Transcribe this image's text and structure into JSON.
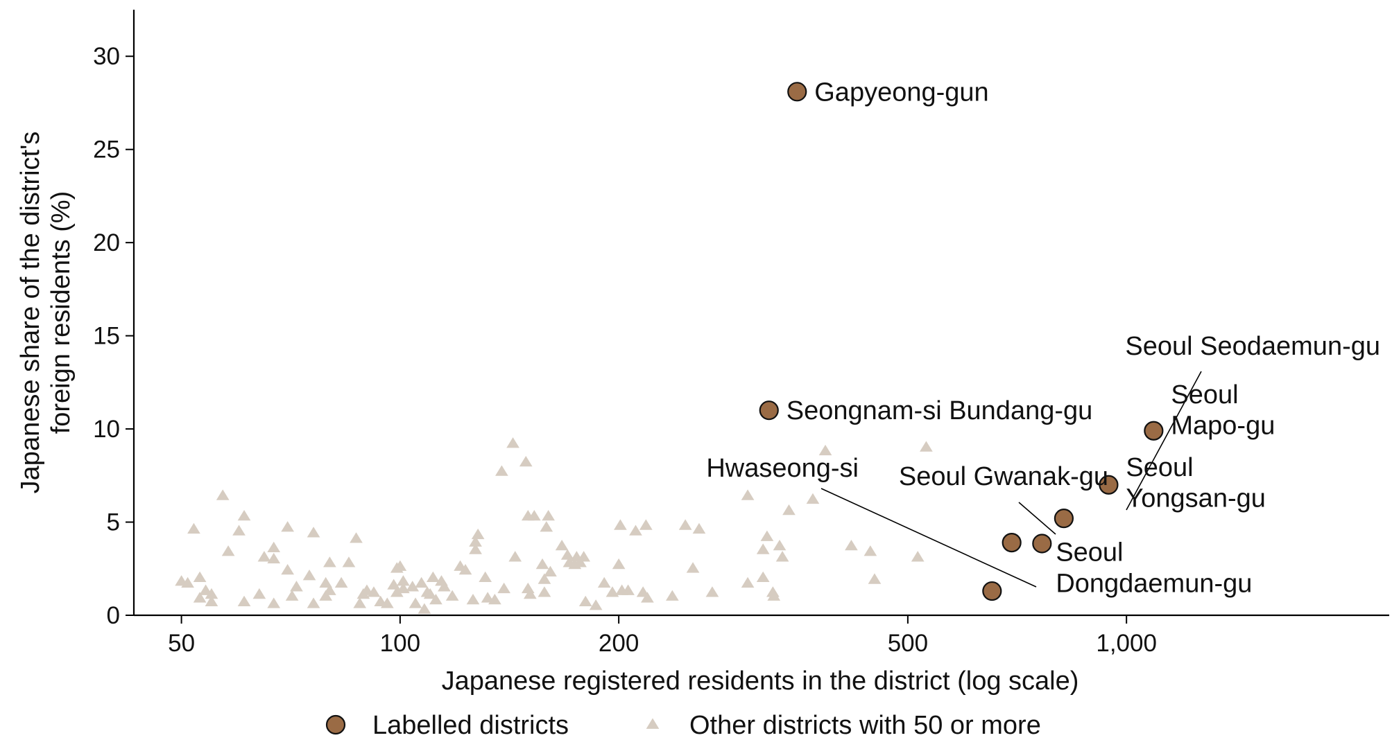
{
  "chart_data": {
    "type": "scatter",
    "xlabel": "Japanese registered residents in the district (log scale)",
    "ylabel": "Japanese share of the district's foreign residents (%)",
    "x_scale": "log",
    "xlim": [
      43,
      2300
    ],
    "ylim": [
      0,
      32.5
    ],
    "x_ticks": [
      50,
      100,
      200,
      500,
      1000
    ],
    "x_tick_labels": [
      "50",
      "100",
      "200",
      "500",
      "1,000"
    ],
    "y_ticks": [
      0,
      5,
      10,
      15,
      20,
      25,
      30
    ],
    "y_tick_labels": [
      "0",
      "5",
      "10",
      "15",
      "20",
      "25",
      "30"
    ],
    "grid": false,
    "legend_position": "bottom",
    "colors": {
      "labelled": "#9a6b45",
      "labelled_edge": "#111111",
      "other": "#d6ccc1",
      "axis": "#000000"
    },
    "series": [
      {
        "name": "Labelled districts",
        "marker": "circle",
        "points": [
          {
            "label": "Gapyeong-gun",
            "x": 352,
            "y": 28.1
          },
          {
            "label": "Seongnam-si Bundang-gu",
            "x": 322,
            "y": 11.0
          },
          {
            "label": "Seoul Mapo-gu",
            "x": 1090,
            "y": 9.9
          },
          {
            "label": "Seoul Yongsan-gu",
            "x": 945,
            "y": 7.0
          },
          {
            "label": "Seoul Seodaemun-gu",
            "x": 820,
            "y": 5.2
          },
          {
            "label": "Seoul Gwanak-gu",
            "x": 695,
            "y": 3.9
          },
          {
            "label": "Seoul Dongdaemun-gu",
            "x": 765,
            "y": 3.85
          },
          {
            "label": "Hwaseong-si",
            "x": 653,
            "y": 1.3
          }
        ]
      },
      {
        "name": "Other districts with 50 or more",
        "marker": "triangle",
        "points": [
          {
            "x": 50,
            "y": 1.8
          },
          {
            "x": 51,
            "y": 1.7
          },
          {
            "x": 52,
            "y": 4.6
          },
          {
            "x": 53,
            "y": 2.0
          },
          {
            "x": 54,
            "y": 1.3
          },
          {
            "x": 55,
            "y": 1.1
          },
          {
            "x": 55,
            "y": 0.7
          },
          {
            "x": 53,
            "y": 0.9
          },
          {
            "x": 57,
            "y": 6.4
          },
          {
            "x": 58,
            "y": 3.4
          },
          {
            "x": 60,
            "y": 4.5
          },
          {
            "x": 61,
            "y": 5.3
          },
          {
            "x": 61,
            "y": 0.7
          },
          {
            "x": 64,
            "y": 1.1
          },
          {
            "x": 65,
            "y": 3.1
          },
          {
            "x": 67,
            "y": 3.6
          },
          {
            "x": 67,
            "y": 3.0
          },
          {
            "x": 67,
            "y": 0.6
          },
          {
            "x": 70,
            "y": 2.4
          },
          {
            "x": 70,
            "y": 4.7
          },
          {
            "x": 72,
            "y": 1.5
          },
          {
            "x": 71,
            "y": 1.0
          },
          {
            "x": 75,
            "y": 2.1
          },
          {
            "x": 76,
            "y": 0.6
          },
          {
            "x": 76,
            "y": 4.4
          },
          {
            "x": 79,
            "y": 1.0
          },
          {
            "x": 79,
            "y": 1.7
          },
          {
            "x": 80,
            "y": 2.8
          },
          {
            "x": 80,
            "y": 1.3
          },
          {
            "x": 83,
            "y": 1.7
          },
          {
            "x": 85,
            "y": 2.8
          },
          {
            "x": 87,
            "y": 4.1
          },
          {
            "x": 89,
            "y": 1.1
          },
          {
            "x": 88,
            "y": 0.6
          },
          {
            "x": 90,
            "y": 1.3
          },
          {
            "x": 92,
            "y": 1.2
          },
          {
            "x": 94,
            "y": 0.7
          },
          {
            "x": 96,
            "y": 0.6
          },
          {
            "x": 98,
            "y": 1.6
          },
          {
            "x": 99,
            "y": 2.5
          },
          {
            "x": 100,
            "y": 2.6
          },
          {
            "x": 99,
            "y": 1.2
          },
          {
            "x": 101,
            "y": 1.8
          },
          {
            "x": 101,
            "y": 1.4
          },
          {
            "x": 104,
            "y": 1.5
          },
          {
            "x": 105,
            "y": 0.6
          },
          {
            "x": 107,
            "y": 1.7
          },
          {
            "x": 109,
            "y": 1.2
          },
          {
            "x": 110,
            "y": 1.1
          },
          {
            "x": 111,
            "y": 2.0
          },
          {
            "x": 108,
            "y": 0.3
          },
          {
            "x": 112,
            "y": 0.8
          },
          {
            "x": 114,
            "y": 1.8
          },
          {
            "x": 115,
            "y": 1.5
          },
          {
            "x": 118,
            "y": 1.0
          },
          {
            "x": 121,
            "y": 2.6
          },
          {
            "x": 123,
            "y": 2.4
          },
          {
            "x": 126,
            "y": 0.8
          },
          {
            "x": 127,
            "y": 3.5
          },
          {
            "x": 127,
            "y": 3.9
          },
          {
            "x": 128,
            "y": 4.3
          },
          {
            "x": 131,
            "y": 2.0
          },
          {
            "x": 132,
            "y": 0.9
          },
          {
            "x": 135,
            "y": 0.8
          },
          {
            "x": 138,
            "y": 7.7
          },
          {
            "x": 139,
            "y": 1.4
          },
          {
            "x": 143,
            "y": 9.2
          },
          {
            "x": 144,
            "y": 3.1
          },
          {
            "x": 149,
            "y": 8.2
          },
          {
            "x": 150,
            "y": 5.3
          },
          {
            "x": 150,
            "y": 1.4
          },
          {
            "x": 151,
            "y": 1.1
          },
          {
            "x": 153,
            "y": 5.3
          },
          {
            "x": 157,
            "y": 2.7
          },
          {
            "x": 158,
            "y": 1.9
          },
          {
            "x": 158,
            "y": 1.2
          },
          {
            "x": 159,
            "y": 4.7
          },
          {
            "x": 160,
            "y": 5.3
          },
          {
            "x": 161,
            "y": 2.3
          },
          {
            "x": 167,
            "y": 3.7
          },
          {
            "x": 170,
            "y": 3.2
          },
          {
            "x": 171,
            "y": 2.8
          },
          {
            "x": 174,
            "y": 2.7
          },
          {
            "x": 175,
            "y": 3.1
          },
          {
            "x": 177,
            "y": 2.8
          },
          {
            "x": 179,
            "y": 3.1
          },
          {
            "x": 180,
            "y": 0.7
          },
          {
            "x": 186,
            "y": 0.5
          },
          {
            "x": 191,
            "y": 1.7
          },
          {
            "x": 196,
            "y": 1.2
          },
          {
            "x": 200,
            "y": 2.7
          },
          {
            "x": 201,
            "y": 4.8
          },
          {
            "x": 202,
            "y": 1.3
          },
          {
            "x": 206,
            "y": 1.3
          },
          {
            "x": 211,
            "y": 4.5
          },
          {
            "x": 216,
            "y": 1.2
          },
          {
            "x": 218,
            "y": 4.8
          },
          {
            "x": 219,
            "y": 0.9
          },
          {
            "x": 237,
            "y": 1.0
          },
          {
            "x": 247,
            "y": 4.8
          },
          {
            "x": 253,
            "y": 2.5
          },
          {
            "x": 258,
            "y": 4.6
          },
          {
            "x": 269,
            "y": 1.2
          },
          {
            "x": 301,
            "y": 6.4
          },
          {
            "x": 301,
            "y": 1.7
          },
          {
            "x": 316,
            "y": 2.0
          },
          {
            "x": 316,
            "y": 3.5
          },
          {
            "x": 320,
            "y": 4.2
          },
          {
            "x": 326,
            "y": 1.2
          },
          {
            "x": 327,
            "y": 1.0
          },
          {
            "x": 333,
            "y": 3.7
          },
          {
            "x": 336,
            "y": 3.1
          },
          {
            "x": 343,
            "y": 5.6
          },
          {
            "x": 370,
            "y": 6.2
          },
          {
            "x": 385,
            "y": 8.8
          },
          {
            "x": 418,
            "y": 3.7
          },
          {
            "x": 444,
            "y": 3.4
          },
          {
            "x": 450,
            "y": 1.9
          },
          {
            "x": 516,
            "y": 3.1
          },
          {
            "x": 530,
            "y": 9.0
          }
        ]
      }
    ]
  }
}
